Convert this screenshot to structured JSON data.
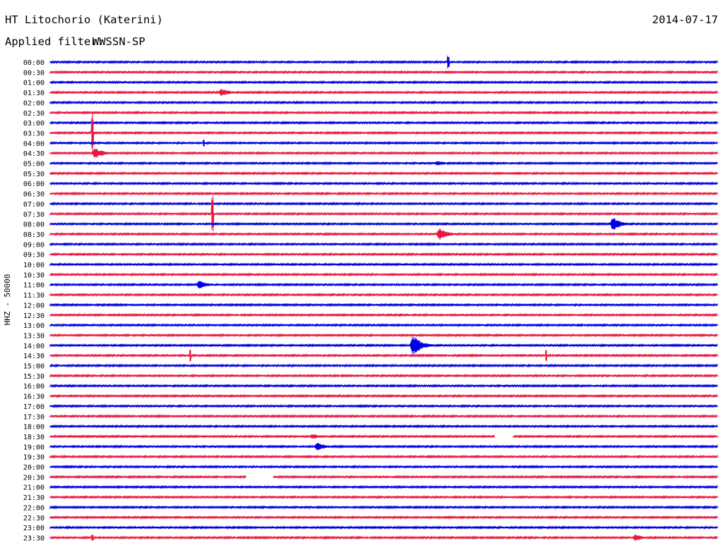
{
  "header": {
    "station": "HT Litochorio (Katerini)",
    "date": "2014-07-17",
    "filter_label": "Applied filter:",
    "filter_value": "WWSSN-SP"
  },
  "chart_data": {
    "type": "line",
    "title": "HT Litochorio (Katerini)",
    "ylabel": "HHZ - 50000",
    "colors": [
      "#0000e6",
      "#ea1842"
    ],
    "rows": [
      "00:00",
      "00:30",
      "01:00",
      "01:30",
      "02:00",
      "02:30",
      "03:00",
      "03:30",
      "04:00",
      "04:30",
      "05:00",
      "05:30",
      "06:00",
      "06:30",
      "07:00",
      "07:30",
      "08:00",
      "08:30",
      "09:00",
      "09:30",
      "10:00",
      "10:30",
      "11:00",
      "11:30",
      "12:00",
      "12:30",
      "13:00",
      "13:30",
      "14:00",
      "14:30",
      "15:00",
      "15:30",
      "16:00",
      "16:30",
      "17:00",
      "17:30",
      "18:00",
      "18:30",
      "19:00",
      "19:30",
      "20:00",
      "20:30",
      "21:00",
      "21:30",
      "22:00",
      "22:30",
      "23:00",
      "23:30"
    ],
    "events": [
      {
        "row": 0,
        "minute": 17.9,
        "amplitude": 10,
        "kind": "spike"
      },
      {
        "row": 3,
        "minute": 7.7,
        "amplitude": 6,
        "kind": "burst"
      },
      {
        "row": 7,
        "minute": 1.9,
        "amplitude": 30,
        "kind": "spike"
      },
      {
        "row": 8,
        "minute": 6.9,
        "amplitude": 6,
        "kind": "spike"
      },
      {
        "row": 9,
        "minute": 2.0,
        "amplitude": 8,
        "kind": "burst"
      },
      {
        "row": 10,
        "minute": 17.4,
        "amplitude": 4,
        "kind": "burst"
      },
      {
        "row": 15,
        "minute": 7.3,
        "amplitude": 30,
        "kind": "spike"
      },
      {
        "row": 16,
        "minute": 25.3,
        "amplitude": 10,
        "kind": "burst"
      },
      {
        "row": 17,
        "minute": 17.5,
        "amplitude": 9,
        "kind": "burst"
      },
      {
        "row": 22,
        "minute": 6.7,
        "amplitude": 7,
        "kind": "burst"
      },
      {
        "row": 28,
        "minute": 16.3,
        "amplitude": 16,
        "kind": "burst"
      },
      {
        "row": 29,
        "minute": 6.3,
        "amplitude": 9,
        "kind": "spike"
      },
      {
        "row": 29,
        "minute": 22.3,
        "amplitude": 8,
        "kind": "spike"
      },
      {
        "row": 37,
        "minute": 11.8,
        "amplitude": 4,
        "kind": "burst"
      },
      {
        "row": 38,
        "minute": 12.0,
        "amplitude": 6,
        "kind": "burst"
      },
      {
        "row": 47,
        "minute": 1.9,
        "amplitude": 6,
        "kind": "spike"
      },
      {
        "row": 47,
        "minute": 26.3,
        "amplitude": 5,
        "kind": "burst"
      }
    ],
    "gaps": [
      {
        "row": 37,
        "from_minute": 20.0,
        "to_minute": 20.8
      },
      {
        "row": 41,
        "from_minute": 8.8,
        "to_minute": 10.0
      }
    ],
    "grid": false,
    "legend": "none"
  }
}
